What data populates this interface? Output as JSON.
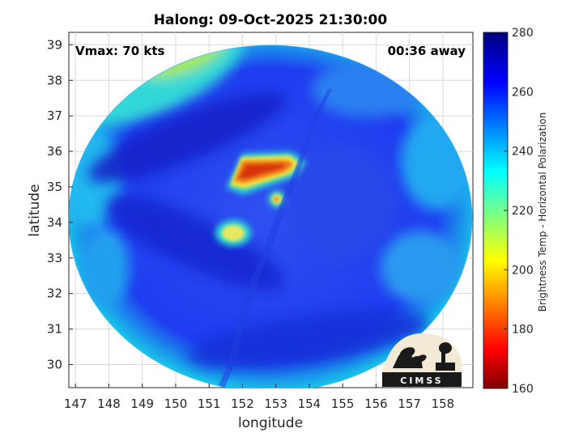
{
  "chart_data": {
    "type": "heatmap",
    "title": "Halong: 09-Oct-2025 21:30:00",
    "xlabel": "longitude",
    "ylabel": "latitude",
    "xlim": [
      146.8,
      158.9
    ],
    "ylim": [
      29.35,
      39.35
    ],
    "x_ticks": [
      "147",
      "148",
      "149",
      "150",
      "151",
      "152",
      "153",
      "154",
      "155",
      "156",
      "157",
      "158"
    ],
    "y_ticks": [
      "30",
      "31",
      "32",
      "33",
      "34",
      "35",
      "36",
      "37",
      "38",
      "39"
    ],
    "grid": true,
    "colorbar": {
      "label": "Brightness Temp - Horizontal Polarization",
      "range": [
        160,
        280
      ],
      "ticks": [
        "160",
        "180",
        "200",
        "220",
        "240",
        "260",
        "280"
      ],
      "colormap": "jet"
    },
    "annotations": {
      "vmax": "Vmax: 70 kts",
      "time_offset": "00:36 away"
    },
    "storm_center": {
      "lon": 153.05,
      "lat": 34.55
    },
    "features": [
      {
        "name": "cold eyewall band",
        "lon": 152.6,
        "lat": 35.45,
        "value": 180
      },
      {
        "name": "southern eyewall",
        "lon": 151.7,
        "lat": 33.7,
        "value": 212
      },
      {
        "name": "eye",
        "lon": 153.05,
        "lat": 34.55,
        "value": 215
      },
      {
        "name": "northwest warm region",
        "lon": 150.2,
        "lat": 38.5,
        "value": 222
      },
      {
        "name": "background",
        "lon": 155.5,
        "lat": 31.0,
        "value": 255
      }
    ]
  },
  "logo": {
    "text": "CIMSS"
  },
  "colors": {
    "background_swath": "#1e3ff0",
    "cold_core": "#d83a10",
    "warm_fringe": "#f2e640"
  }
}
